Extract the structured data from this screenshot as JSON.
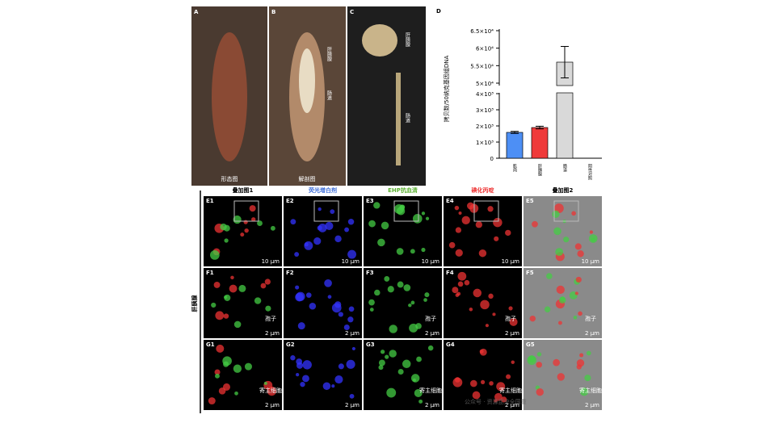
{
  "photos": [
    {
      "label": "A",
      "caption": "形态图"
    },
    {
      "label": "B",
      "caption": "解剖图",
      "annotations": [
        "肝胰腺",
        "肠道"
      ]
    },
    {
      "label": "C",
      "annotations": [
        "肝胰腺",
        "肠道"
      ]
    }
  ],
  "chart_data": {
    "type": "bar",
    "panel": "D",
    "ylabel": "拷贝数/50纳克基因组DNA",
    "categories": [
      "肌肉",
      "肝胰腺",
      "肠道",
      "阴性对照"
    ],
    "values": [
      1600,
      1900,
      56000,
      0
    ],
    "errors": [
      60,
      80,
      4500,
      0
    ],
    "colors": [
      "#4d8ff5",
      "#ef3a3a",
      "#d9d9d9",
      "#d9d9d9"
    ],
    "ylim_segments": [
      [
        0,
        4000
      ],
      [
        50000,
        65000
      ]
    ],
    "yticks": [
      {
        "value": 0,
        "label": "0"
      },
      {
        "value": 1000,
        "label": "1×10³"
      },
      {
        "value": 2000,
        "label": "2×10³"
      },
      {
        "value": 3000,
        "label": "3×10³"
      },
      {
        "value": 4000,
        "label": "4×10³"
      },
      {
        "value": 50000,
        "label": "5×10⁴"
      },
      {
        "value": 55000,
        "label": "5.5×10⁴"
      },
      {
        "value": 60000,
        "label": "6×10⁴"
      },
      {
        "value": 65000,
        "label": "6.5×10⁴"
      }
    ]
  },
  "microscopy": {
    "tissue": "肝胰腺",
    "columns": [
      "叠加图1",
      "荧光增白剂",
      "EHP抗血清",
      "碘化丙啶",
      "叠加图2"
    ],
    "rows": [
      {
        "panels": [
          "E1",
          "E2",
          "E3",
          "E4",
          "E5"
        ],
        "scale": "10 μm"
      },
      {
        "panels": [
          "F1",
          "F2",
          "F3",
          "F4",
          "F5"
        ],
        "scale": "2 μm",
        "note": "孢子"
      },
      {
        "panels": [
          "G1",
          "G2",
          "G3",
          "G4",
          "G5"
        ],
        "scale": "2 μm",
        "note": "寄主细胞"
      }
    ]
  },
  "watermark": "公众号 · 资源昆虫全国重"
}
